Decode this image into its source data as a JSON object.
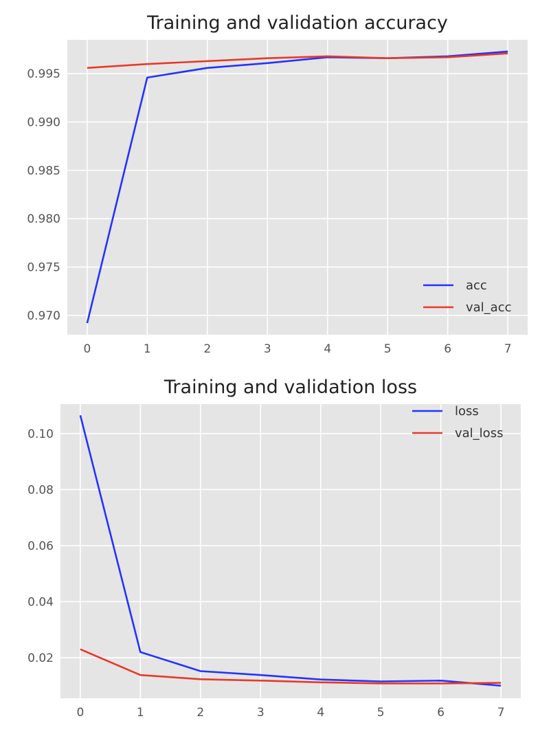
{
  "chart_data": [
    {
      "type": "line",
      "title": "Training and validation accuracy",
      "xlabel": "",
      "ylabel": "",
      "x": [
        0,
        1,
        2,
        3,
        4,
        5,
        6,
        7
      ],
      "xticks": [
        0,
        1,
        2,
        3,
        4,
        5,
        6,
        7
      ],
      "ylim": [
        0.968,
        0.9985
      ],
      "yticks": [
        0.97,
        0.975,
        0.98,
        0.985,
        0.99,
        0.995
      ],
      "ytick_labels": [
        "0.970",
        "0.975",
        "0.980",
        "0.985",
        "0.990",
        "0.995"
      ],
      "xlim": [
        -0.33,
        7.33
      ],
      "grid": true,
      "legend_position": "bottom-right",
      "series": [
        {
          "name": "acc",
          "color": "#2233ff",
          "values": [
            0.9692,
            0.9946,
            0.9956,
            0.9961,
            0.9967,
            0.9966,
            0.9968,
            0.9973
          ]
        },
        {
          "name": "val_acc",
          "color": "#e8392a",
          "values": [
            0.9956,
            0.996,
            0.9963,
            0.9966,
            0.9968,
            0.9966,
            0.9967,
            0.9971
          ]
        }
      ]
    },
    {
      "type": "line",
      "title": "Training and validation loss",
      "xlabel": "",
      "ylabel": "",
      "x": [
        0,
        1,
        2,
        3,
        4,
        5,
        6,
        7
      ],
      "xticks": [
        0,
        1,
        2,
        3,
        4,
        5,
        6,
        7
      ],
      "ylim": [
        0.0055,
        0.1105
      ],
      "yticks": [
        0.02,
        0.04,
        0.06,
        0.08,
        0.1
      ],
      "ytick_labels": [
        "0.02",
        "0.04",
        "0.06",
        "0.08",
        "0.10"
      ],
      "xlim": [
        -0.33,
        7.33
      ],
      "grid": true,
      "legend_position": "top-right",
      "series": [
        {
          "name": "loss",
          "color": "#2233ff",
          "values": [
            0.1065,
            0.022,
            0.0152,
            0.0138,
            0.0122,
            0.0115,
            0.0118,
            0.01
          ]
        },
        {
          "name": "val_loss",
          "color": "#e8392a",
          "values": [
            0.023,
            0.0138,
            0.0123,
            0.0118,
            0.0112,
            0.0108,
            0.0108,
            0.011
          ]
        }
      ]
    }
  ]
}
